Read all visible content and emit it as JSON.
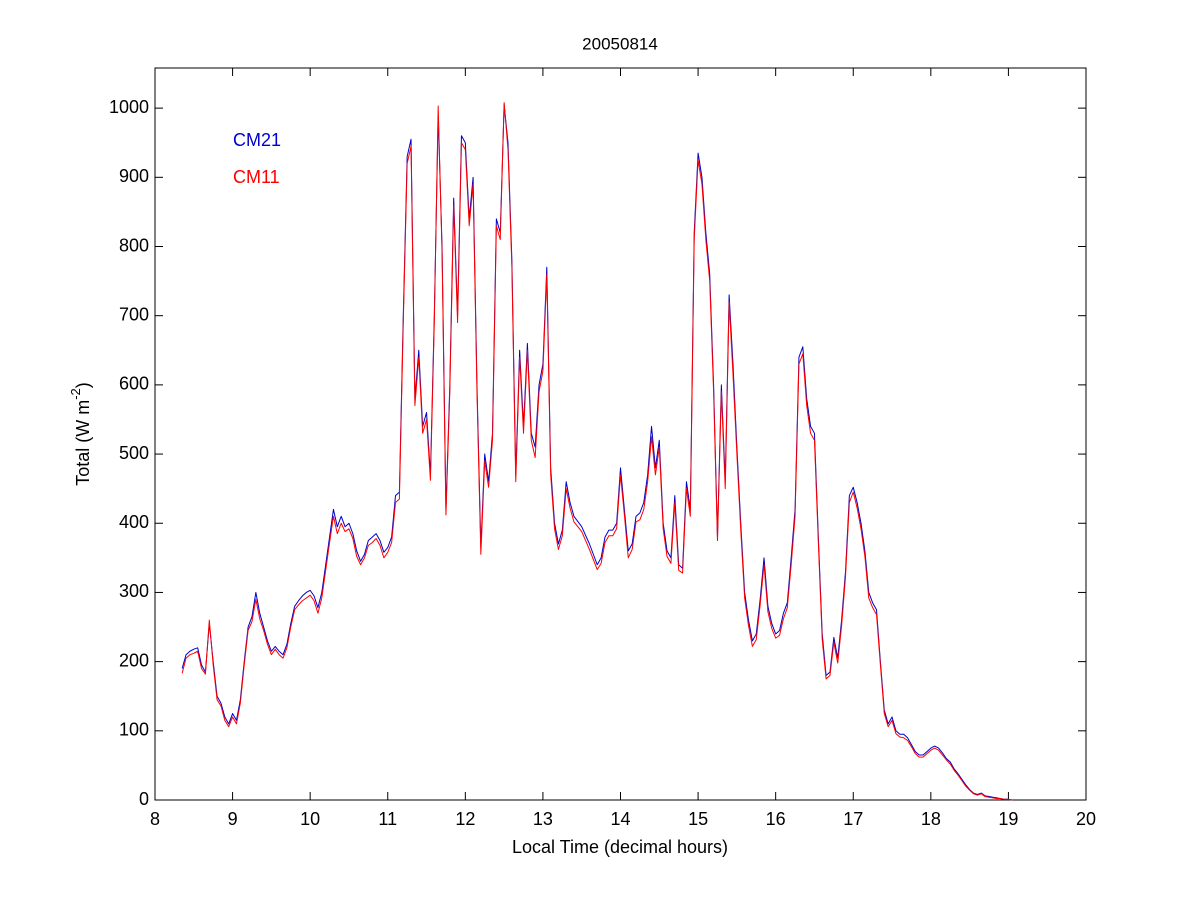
{
  "chart_data": {
    "type": "line",
    "title": "20050814",
    "xlabel": "Local Time (decimal hours)",
    "ylabel": "Total (W m",
    "ylabel_exponent": "-2",
    "ylabel_end": ")",
    "legend": "upper left",
    "xlim": [
      8,
      20
    ],
    "xticks": [
      8,
      9,
      10,
      11,
      12,
      13,
      14,
      15,
      16,
      17,
      18,
      19,
      20
    ],
    "ylim": [
      0,
      1058
    ],
    "yticks": [
      0,
      100,
      200,
      300,
      400,
      500,
      600,
      700,
      800,
      900,
      1000
    ],
    "x": [
      8.35,
      8.4,
      8.45,
      8.5,
      8.55,
      8.6,
      8.65,
      8.7,
      8.75,
      8.8,
      8.85,
      8.9,
      8.95,
      9.0,
      9.05,
      9.1,
      9.15,
      9.2,
      9.25,
      9.3,
      9.35,
      9.4,
      9.45,
      9.5,
      9.55,
      9.6,
      9.65,
      9.7,
      9.75,
      9.8,
      9.85,
      9.9,
      9.95,
      10.0,
      10.05,
      10.1,
      10.15,
      10.2,
      10.25,
      10.3,
      10.35,
      10.4,
      10.45,
      10.5,
      10.55,
      10.6,
      10.65,
      10.7,
      10.75,
      10.8,
      10.85,
      10.9,
      10.95,
      11.0,
      11.05,
      11.1,
      11.15,
      11.2,
      11.25,
      11.3,
      11.35,
      11.4,
      11.45,
      11.5,
      11.55,
      11.6,
      11.65,
      11.7,
      11.75,
      11.8,
      11.85,
      11.9,
      11.95,
      12.0,
      12.05,
      12.1,
      12.15,
      12.2,
      12.25,
      12.3,
      12.35,
      12.4,
      12.45,
      12.5,
      12.55,
      12.6,
      12.65,
      12.7,
      12.75,
      12.8,
      12.85,
      12.9,
      12.95,
      13.0,
      13.05,
      13.1,
      13.15,
      13.2,
      13.25,
      13.3,
      13.35,
      13.4,
      13.5,
      13.6,
      13.7,
      13.75,
      13.8,
      13.85,
      13.9,
      13.95,
      14.0,
      14.05,
      14.1,
      14.15,
      14.2,
      14.25,
      14.3,
      14.35,
      14.4,
      14.45,
      14.5,
      14.55,
      14.6,
      14.65,
      14.7,
      14.75,
      14.8,
      14.85,
      14.9,
      14.95,
      15.0,
      15.05,
      15.1,
      15.15,
      15.2,
      15.25,
      15.3,
      15.35,
      15.4,
      15.45,
      15.5,
      15.55,
      15.6,
      15.65,
      15.7,
      15.75,
      15.8,
      15.85,
      15.9,
      15.95,
      16.0,
      16.05,
      16.1,
      16.15,
      16.2,
      16.25,
      16.3,
      16.35,
      16.4,
      16.45,
      16.5,
      16.55,
      16.6,
      16.65,
      16.7,
      16.75,
      16.8,
      16.85,
      16.9,
      16.95,
      17.0,
      17.05,
      17.1,
      17.15,
      17.2,
      17.25,
      17.3,
      17.35,
      17.4,
      17.45,
      17.5,
      17.55,
      17.6,
      17.65,
      17.7,
      17.75,
      17.8,
      17.85,
      17.9,
      17.95,
      18.0,
      18.05,
      18.1,
      18.15,
      18.2,
      18.25,
      18.3,
      18.35,
      18.4,
      18.45,
      18.5,
      18.55,
      18.6,
      18.65,
      18.7,
      18.75,
      18.8,
      18.85,
      18.9,
      18.95,
      19.0,
      19.05
    ],
    "series": [
      {
        "name": "CM21",
        "color": "#0000cc",
        "values": [
          190,
          210,
          215,
          218,
          220,
          195,
          185,
          255,
          200,
          150,
          140,
          120,
          110,
          125,
          115,
          145,
          200,
          250,
          265,
          300,
          270,
          250,
          230,
          215,
          222,
          215,
          210,
          225,
          255,
          280,
          288,
          295,
          300,
          303,
          295,
          278,
          300,
          340,
          380,
          420,
          395,
          410,
          395,
          400,
          385,
          360,
          345,
          355,
          375,
          380,
          385,
          375,
          358,
          365,
          380,
          440,
          445,
          700,
          930,
          955,
          580,
          650,
          540,
          560,
          470,
          700,
          990,
          800,
          420,
          600,
          870,
          700,
          960,
          950,
          840,
          900,
          600,
          365,
          500,
          460,
          530,
          840,
          820,
          1005,
          950,
          780,
          470,
          650,
          540,
          660,
          530,
          510,
          600,
          630,
          770,
          480,
          400,
          370,
          390,
          460,
          430,
          410,
          395,
          370,
          340,
          350,
          380,
          390,
          390,
          400,
          480,
          420,
          360,
          370,
          410,
          415,
          430,
          470,
          540,
          480,
          520,
          400,
          360,
          350,
          440,
          340,
          335,
          460,
          420,
          820,
          935,
          900,
          820,
          760,
          600,
          380,
          600,
          460,
          730,
          630,
          510,
          400,
          300,
          260,
          230,
          240,
          290,
          350,
          280,
          255,
          240,
          245,
          270,
          285,
          350,
          420,
          640,
          655,
          580,
          540,
          530,
          380,
          240,
          180,
          185,
          235,
          205,
          260,
          330,
          440,
          452,
          430,
          400,
          360,
          300,
          285,
          275,
          200,
          130,
          110,
          120,
          100,
          95,
          95,
          90,
          80,
          70,
          65,
          65,
          70,
          75,
          78,
          75,
          68,
          60,
          55,
          45,
          38,
          30,
          22,
          15,
          10,
          8,
          10,
          6,
          5,
          4,
          3,
          2,
          1,
          1,
          0
        ]
      },
      {
        "name": "CM11",
        "color": "#ff0000",
        "values": [
          183,
          205,
          210,
          212,
          215,
          190,
          182,
          260,
          195,
          145,
          136,
          115,
          106,
          120,
          110,
          140,
          195,
          245,
          258,
          290,
          262,
          245,
          225,
          210,
          218,
          210,
          205,
          220,
          250,
          275,
          282,
          288,
          292,
          296,
          288,
          270,
          292,
          332,
          372,
          410,
          385,
          400,
          388,
          392,
          378,
          352,
          340,
          350,
          368,
          372,
          378,
          368,
          350,
          358,
          372,
          430,
          435,
          690,
          920,
          945,
          570,
          640,
          530,
          550,
          462,
          690,
          1003,
          790,
          412,
          590,
          860,
          690,
          950,
          940,
          830,
          890,
          590,
          355,
          490,
          452,
          520,
          830,
          810,
          1008,
          940,
          770,
          460,
          640,
          530,
          650,
          520,
          495,
          590,
          620,
          760,
          470,
          392,
          362,
          382,
          450,
          422,
          402,
          388,
          362,
          333,
          342,
          372,
          382,
          382,
          392,
          470,
          412,
          350,
          362,
          402,
          405,
          420,
          460,
          525,
          470,
          510,
          392,
          352,
          342,
          430,
          332,
          328,
          450,
          410,
          810,
          925,
          890,
          810,
          750,
          590,
          375,
          590,
          450,
          720,
          615,
          500,
          390,
          292,
          252,
          222,
          232,
          282,
          340,
          272,
          248,
          234,
          238,
          262,
          278,
          340,
          410,
          630,
          645,
          570,
          530,
          520,
          372,
          232,
          175,
          180,
          228,
          198,
          252,
          322,
          430,
          445,
          422,
          392,
          352,
          292,
          278,
          268,
          195,
          125,
          106,
          115,
          96,
          91,
          90,
          86,
          77,
          67,
          62,
          62,
          67,
          72,
          75,
          72,
          65,
          58,
          52,
          43,
          36,
          28,
          20,
          14,
          9,
          7,
          9,
          5,
          4,
          3,
          2,
          2,
          1,
          1,
          0
        ]
      }
    ]
  }
}
